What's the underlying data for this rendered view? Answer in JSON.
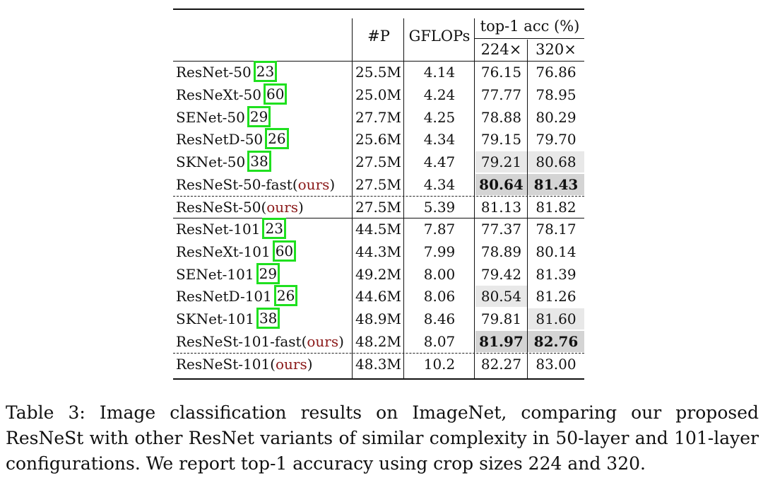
{
  "table": {
    "headers": {
      "params": "#P",
      "gflops": "GFLOPs",
      "acc": "top-1 acc (%)",
      "acc224": "224×",
      "acc320": "320×"
    },
    "groups": [
      {
        "rows": [
          {
            "name": "ResNet-50",
            "cite": "23",
            "params": "25.5M",
            "gflops": "4.14",
            "acc224": "76.15",
            "acc320": "76.86",
            "hl224": "",
            "hl320": ""
          },
          {
            "name": "ResNeXt-50",
            "cite": "60",
            "params": "25.0M",
            "gflops": "4.24",
            "acc224": "77.77",
            "acc320": "78.95",
            "hl224": "",
            "hl320": ""
          },
          {
            "name": "SENet-50",
            "cite": "29",
            "params": "27.7M",
            "gflops": "4.25",
            "acc224": "78.88",
            "acc320": "80.29",
            "hl224": "",
            "hl320": ""
          },
          {
            "name": "ResNetD-50",
            "cite": "26",
            "params": "25.6M",
            "gflops": "4.34",
            "acc224": "79.15",
            "acc320": "79.70",
            "hl224": "",
            "hl320": ""
          },
          {
            "name": "SKNet-50",
            "cite": "38",
            "params": "27.5M",
            "gflops": "4.47",
            "acc224": "79.21",
            "acc320": "80.68",
            "hl224": "light",
            "hl320": "light"
          },
          {
            "name": "ResNeSt-50-fast",
            "ours": "ours",
            "params": "27.5M",
            "gflops": "4.34",
            "acc224": "80.64",
            "acc320": "81.43",
            "hl224": "dark-bold",
            "hl320": "dark-bold"
          },
          {
            "name": "ResNeSt-50",
            "ours": "ours",
            "params": "27.5M",
            "gflops": "5.39",
            "acc224": "81.13",
            "acc320": "81.82",
            "hl224": "",
            "hl320": "",
            "dashed_above": true
          }
        ]
      },
      {
        "rows": [
          {
            "name": "ResNet-101",
            "cite": "23",
            "params": "44.5M",
            "gflops": "7.87",
            "acc224": "77.37",
            "acc320": "78.17",
            "hl224": "",
            "hl320": ""
          },
          {
            "name": "ResNeXt-101",
            "cite": "60",
            "params": "44.3M",
            "gflops": "7.99",
            "acc224": "78.89",
            "acc320": "80.14",
            "hl224": "",
            "hl320": ""
          },
          {
            "name": "SENet-101",
            "cite": "29",
            "params": "49.2M",
            "gflops": "8.00",
            "acc224": "79.42",
            "acc320": "81.39",
            "hl224": "",
            "hl320": ""
          },
          {
            "name": "ResNetD-101",
            "cite": "26",
            "params": "44.6M",
            "gflops": "8.06",
            "acc224": "80.54",
            "acc320": "81.26",
            "hl224": "light",
            "hl320": ""
          },
          {
            "name": "SKNet-101",
            "cite": "38",
            "params": "48.9M",
            "gflops": "8.46",
            "acc224": "79.81",
            "acc320": "81.60",
            "hl224": "",
            "hl320": "light"
          },
          {
            "name": "ResNeSt-101-fast",
            "ours": "ours",
            "params": "48.2M",
            "gflops": "8.07",
            "acc224": "81.97",
            "acc320": "82.76",
            "hl224": "dark-bold",
            "hl320": "dark-bold"
          },
          {
            "name": "ResNeSt-101",
            "ours": "ours",
            "params": "48.3M",
            "gflops": "10.2",
            "acc224": "82.27",
            "acc320": "83.00",
            "hl224": "",
            "hl320": "",
            "dashed_above": true
          }
        ]
      }
    ]
  },
  "caption": "Table 3: Image classification results on ImageNet, comparing our proposed ResNeSt with other ResNet variants of similar complexity in 50-layer and 101-layer configurations. We report top-1 accuracy using crop sizes 224 and 320.",
  "colors": {
    "cite_box": "#1fe01f",
    "ours_text": "#8b1a1a",
    "highlight_light": "#e8e8e8",
    "highlight_dark": "#d4d4d4"
  }
}
